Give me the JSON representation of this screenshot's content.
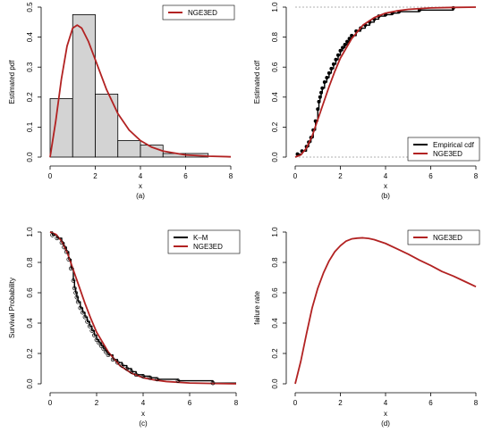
{
  "chart_data": [
    {
      "id": "a",
      "type": "histogram",
      "caption": "(a)",
      "xlabel": "x",
      "ylabel": "Estimated pdf",
      "xlim": [
        0,
        8
      ],
      "ylim": [
        0,
        0.5
      ],
      "xticks": [
        0,
        2,
        4,
        6,
        8
      ],
      "yticks": [
        0.0,
        0.1,
        0.2,
        0.3,
        0.4,
        0.5
      ],
      "ytick_labels": [
        "0.0",
        "0.1",
        "0.2",
        "0.3",
        "0.4",
        "0.5"
      ],
      "bins": [
        {
          "x0": 0,
          "x1": 1,
          "value": 0.195
        },
        {
          "x0": 1,
          "x1": 2,
          "value": 0.475
        },
        {
          "x0": 2,
          "x1": 3,
          "value": 0.21
        },
        {
          "x0": 3,
          "x1": 4,
          "value": 0.055
        },
        {
          "x0": 4,
          "x1": 5,
          "value": 0.04
        },
        {
          "x0": 5,
          "x1": 6,
          "value": 0.012
        },
        {
          "x0": 6,
          "x1": 7,
          "value": 0.012
        }
      ],
      "series": [
        {
          "name": "NGE3ED",
          "color": "#b22222",
          "x": [
            0,
            0.25,
            0.5,
            0.75,
            1.0,
            1.2,
            1.4,
            1.7,
            2.0,
            2.5,
            3.0,
            3.5,
            4.0,
            4.5,
            5.0,
            6.0,
            7.0,
            8.0
          ],
          "y": [
            0,
            0.12,
            0.26,
            0.37,
            0.43,
            0.44,
            0.43,
            0.385,
            0.325,
            0.225,
            0.145,
            0.09,
            0.055,
            0.033,
            0.02,
            0.007,
            0.003,
            0.001
          ]
        }
      ],
      "legend": "top-right"
    },
    {
      "id": "b",
      "type": "line",
      "caption": "(b)",
      "xlabel": "x",
      "ylabel": "Estimated cdf",
      "xlim": [
        0,
        8
      ],
      "ylim": [
        0,
        1
      ],
      "xticks": [
        0,
        2,
        4,
        6,
        8
      ],
      "yticks": [
        0.0,
        0.2,
        0.4,
        0.6,
        0.8,
        1.0
      ],
      "ytick_labels": [
        "0.0",
        "0.2",
        "0.4",
        "0.6",
        "0.8",
        "1.0"
      ],
      "reference_lines_y": [
        0,
        1
      ],
      "series": [
        {
          "name": "Empirical cdf",
          "color": "#000000",
          "style": "step",
          "x": [
            0.1,
            0.3,
            0.5,
            0.6,
            0.7,
            0.8,
            0.9,
            1.0,
            1.05,
            1.1,
            1.15,
            1.2,
            1.3,
            1.4,
            1.5,
            1.6,
            1.7,
            1.8,
            1.9,
            2.0,
            2.1,
            2.2,
            2.3,
            2.4,
            2.5,
            2.7,
            2.9,
            3.1,
            3.3,
            3.5,
            3.7,
            4.0,
            4.3,
            4.6,
            5.5,
            7.0
          ],
          "y": [
            0.02,
            0.04,
            0.07,
            0.1,
            0.13,
            0.18,
            0.24,
            0.32,
            0.37,
            0.4,
            0.43,
            0.46,
            0.5,
            0.53,
            0.56,
            0.59,
            0.62,
            0.65,
            0.68,
            0.71,
            0.73,
            0.75,
            0.77,
            0.79,
            0.81,
            0.84,
            0.86,
            0.88,
            0.9,
            0.92,
            0.94,
            0.95,
            0.96,
            0.97,
            0.98,
            0.995
          ]
        },
        {
          "name": "NGE3ED",
          "color": "#b22222",
          "x": [
            0,
            0.25,
            0.5,
            0.75,
            1.0,
            1.25,
            1.5,
            1.75,
            2.0,
            2.5,
            3.0,
            3.5,
            4.0,
            4.5,
            5.0,
            6.0,
            7.0,
            8.0
          ],
          "y": [
            0,
            0.015,
            0.06,
            0.14,
            0.25,
            0.36,
            0.47,
            0.57,
            0.66,
            0.79,
            0.88,
            0.93,
            0.96,
            0.975,
            0.985,
            0.995,
            0.998,
            1.0
          ]
        }
      ],
      "legend": "bottom-right"
    },
    {
      "id": "c",
      "type": "line",
      "caption": "(c)",
      "xlabel": "x",
      "ylabel": "Survival Probability",
      "xlim": [
        0,
        8
      ],
      "ylim": [
        0,
        1
      ],
      "xticks": [
        0,
        2,
        4,
        6,
        8
      ],
      "yticks": [
        0.0,
        0.2,
        0.4,
        0.6,
        0.8,
        1.0
      ],
      "ytick_labels": [
        "0.0",
        "0.2",
        "0.4",
        "0.6",
        "0.8",
        "1.0"
      ],
      "series": [
        {
          "name": "K–M",
          "color": "#000000",
          "style": "step",
          "x": [
            0,
            0.1,
            0.3,
            0.5,
            0.6,
            0.7,
            0.8,
            0.9,
            1.0,
            1.05,
            1.1,
            1.15,
            1.2,
            1.3,
            1.4,
            1.5,
            1.6,
            1.7,
            1.8,
            1.9,
            2.0,
            2.1,
            2.2,
            2.3,
            2.4,
            2.5,
            2.7,
            2.9,
            3.1,
            3.3,
            3.5,
            3.7,
            4.0,
            4.3,
            4.6,
            5.5,
            7.0,
            8.0
          ],
          "y": [
            1.0,
            0.98,
            0.96,
            0.93,
            0.9,
            0.87,
            0.82,
            0.76,
            0.68,
            0.63,
            0.6,
            0.57,
            0.54,
            0.5,
            0.47,
            0.44,
            0.41,
            0.38,
            0.35,
            0.32,
            0.29,
            0.27,
            0.25,
            0.23,
            0.21,
            0.19,
            0.16,
            0.14,
            0.12,
            0.1,
            0.08,
            0.06,
            0.05,
            0.04,
            0.03,
            0.02,
            0.005,
            0.005
          ]
        },
        {
          "name": "NGE3ED",
          "color": "#b22222",
          "x": [
            0,
            0.25,
            0.5,
            0.75,
            1.0,
            1.25,
            1.5,
            1.75,
            2.0,
            2.5,
            3.0,
            3.5,
            4.0,
            4.5,
            5.0,
            6.0,
            7.0,
            8.0
          ],
          "y": [
            1.0,
            0.985,
            0.94,
            0.86,
            0.75,
            0.64,
            0.53,
            0.43,
            0.34,
            0.21,
            0.12,
            0.07,
            0.04,
            0.025,
            0.015,
            0.005,
            0.002,
            0.0
          ]
        }
      ],
      "markers": {
        "x": [
          0.1,
          0.3,
          0.5,
          0.6,
          0.7,
          0.8,
          0.9,
          1.0,
          1.05,
          1.1,
          1.15,
          1.2,
          1.3,
          1.4,
          1.5,
          1.6,
          1.7,
          1.8,
          1.9,
          2.0,
          2.1,
          2.2,
          2.3,
          2.4,
          2.5,
          2.7,
          2.9,
          3.1,
          3.3,
          3.5,
          3.7,
          4.0,
          4.3,
          4.6,
          5.5,
          7.0
        ],
        "y": [
          0.98,
          0.96,
          0.93,
          0.9,
          0.87,
          0.82,
          0.76,
          0.68,
          0.63,
          0.6,
          0.57,
          0.54,
          0.5,
          0.47,
          0.44,
          0.41,
          0.38,
          0.35,
          0.32,
          0.29,
          0.27,
          0.25,
          0.23,
          0.21,
          0.19,
          0.16,
          0.14,
          0.12,
          0.1,
          0.08,
          0.06,
          0.05,
          0.04,
          0.03,
          0.02,
          0.005
        ]
      },
      "legend": "top-right"
    },
    {
      "id": "d",
      "type": "line",
      "caption": "(d)",
      "xlabel": "x",
      "ylabel": "failure rate",
      "xlim": [
        0,
        8
      ],
      "ylim": [
        0,
        1
      ],
      "xticks": [
        0,
        2,
        4,
        6,
        8
      ],
      "yticks": [
        0.0,
        0.2,
        0.4,
        0.6,
        0.8,
        1.0
      ],
      "ytick_labels": [
        "0.0",
        "0.2",
        "0.4",
        "0.6",
        "0.8",
        "1.0"
      ],
      "series": [
        {
          "name": "NGE3ED",
          "color": "#b22222",
          "x": [
            0,
            0.25,
            0.5,
            0.75,
            1.0,
            1.25,
            1.5,
            1.75,
            2.0,
            2.25,
            2.5,
            2.75,
            3.0,
            3.25,
            3.5,
            4.0,
            4.5,
            5.0,
            5.5,
            6.0,
            6.5,
            7.0,
            7.5,
            8.0
          ],
          "y": [
            0.0,
            0.15,
            0.33,
            0.5,
            0.63,
            0.73,
            0.81,
            0.87,
            0.91,
            0.94,
            0.955,
            0.96,
            0.962,
            0.958,
            0.95,
            0.925,
            0.89,
            0.855,
            0.815,
            0.78,
            0.74,
            0.71,
            0.675,
            0.64
          ]
        }
      ],
      "legend": "top-right"
    }
  ]
}
